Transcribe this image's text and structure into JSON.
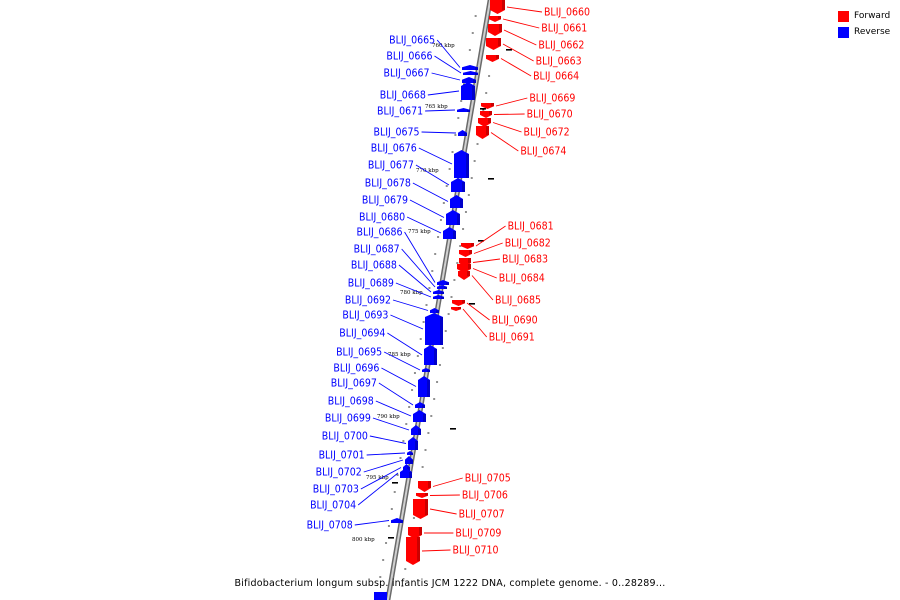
{
  "legend": {
    "forward": {
      "label": "Forward",
      "color": "#ff0000"
    },
    "reverse": {
      "label": "Reverse",
      "color": "#0000ff"
    }
  },
  "caption": "Bifidobacterium longum subsp. infantis JCM 1222 DNA, complete genome. - 0..28289...",
  "kbp_ticks": [
    "760 kbp",
    "765 kbp",
    "770 kbp",
    "775 kbp",
    "780 kbp",
    "785 kbp",
    "790 kbp",
    "795 kbp",
    "800 kbp"
  ],
  "forward_genes": [
    "BLIJ_0660",
    "BLIJ_0661",
    "BLIJ_0662",
    "BLIJ_0663",
    "BLIJ_0664",
    "BLIJ_0669",
    "BLIJ_0670",
    "BLIJ_0672",
    "BLIJ_0674",
    "BLIJ_0681",
    "BLIJ_0682",
    "BLIJ_0683",
    "BLIJ_0684",
    "BLIJ_0685",
    "BLIJ_0690",
    "BLIJ_0691",
    "BLIJ_0705",
    "BLIJ_0706",
    "BLIJ_0707",
    "BLIJ_0709",
    "BLIJ_0710"
  ],
  "reverse_genes": [
    "BLIJ_0665",
    "BLIJ_0666",
    "BLIJ_0667",
    "BLIJ_0668",
    "BLIJ_0671",
    "BLIJ_0675",
    "BLIJ_0676",
    "BLIJ_0677",
    "BLIJ_0678",
    "BLIJ_0679",
    "BLIJ_0680",
    "BLIJ_0686",
    "BLIJ_0687",
    "BLIJ_0688",
    "BLIJ_0689",
    "BLIJ_0692",
    "BLIJ_0693",
    "BLIJ_0694",
    "BLIJ_0695",
    "BLIJ_0696",
    "BLIJ_0697",
    "BLIJ_0698",
    "BLIJ_0699",
    "BLIJ_0700",
    "BLIJ_0701",
    "BLIJ_0702",
    "BLIJ_0703",
    "BLIJ_0704",
    "BLIJ_0708"
  ]
}
